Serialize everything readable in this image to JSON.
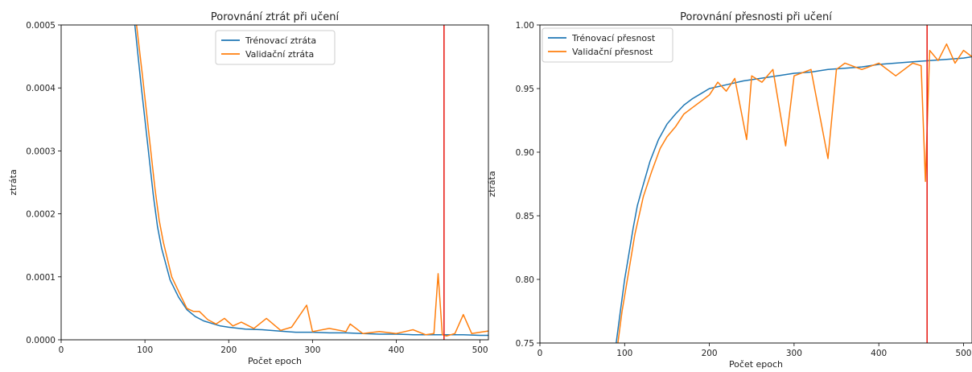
{
  "colors": {
    "train": "#1f77b4",
    "val": "#ff7f0e",
    "marker": "#e8231c"
  },
  "chart_data": [
    {
      "type": "line",
      "title": "Porovnání ztrát při učení",
      "xlabel": "Počet epoch",
      "ylabel": "ztráta",
      "xlim": [
        0,
        510
      ],
      "ylim": [
        0,
        0.0005
      ],
      "xticks": [
        0,
        100,
        200,
        300,
        400,
        500
      ],
      "yticks": [
        0,
        0.0001,
        0.0002,
        0.0003,
        0.0004,
        0.0005
      ],
      "ytick_labels": [
        "0.0000",
        "0.0001",
        "0.0002",
        "0.0003",
        "0.0004",
        "0.0005"
      ],
      "legend": "upper-center",
      "vline_x": 457,
      "grid": false,
      "series": [
        {
          "name": "Trénovací ztráta",
          "x": [
            88,
            95,
            100,
            105,
            110,
            115,
            120,
            130,
            140,
            150,
            160,
            170,
            180,
            190,
            200,
            220,
            240,
            260,
            280,
            300,
            320,
            340,
            360,
            380,
            400,
            420,
            440,
            460,
            480,
            500,
            510
          ],
          "y": [
            0.0005,
            0.00041,
            0.00035,
            0.00029,
            0.00023,
            0.00018,
            0.000145,
            9.5e-05,
            6.8e-05,
            4.8e-05,
            3.7e-05,
            3e-05,
            2.6e-05,
            2.2e-05,
            2e-05,
            1.7e-05,
            1.6e-05,
            1.4e-05,
            1.2e-05,
            1.2e-05,
            1.1e-05,
            1.1e-05,
            1e-05,
            9e-06,
            9e-06,
            8e-06,
            8e-06,
            8e-06,
            8e-06,
            7e-06,
            7e-06
          ]
        },
        {
          "name": "Validační ztráta",
          "x": [
            90,
            97,
            102,
            107,
            112,
            117,
            122,
            132,
            142,
            150,
            158,
            165,
            175,
            185,
            195,
            205,
            215,
            230,
            245,
            262,
            275,
            293,
            300,
            320,
            340,
            345,
            360,
            380,
            400,
            420,
            435,
            445,
            450,
            455,
            460,
            470,
            480,
            490,
            500,
            510
          ],
          "y": [
            0.0005,
            0.00042,
            0.00036,
            0.0003,
            0.00024,
            0.00019,
            0.000155,
            0.0001,
            7.2e-05,
            5e-05,
            4.5e-05,
            4.5e-05,
            3.2e-05,
            2.5e-05,
            3.4e-05,
            2.2e-05,
            2.8e-05,
            1.8e-05,
            3.4e-05,
            1.5e-05,
            2e-05,
            5.5e-05,
            1.3e-05,
            1.8e-05,
            1.3e-05,
            2.5e-05,
            1e-05,
            1.3e-05,
            1e-05,
            1.6e-05,
            8e-06,
            1e-05,
            0.000105,
            8e-06,
            6e-06,
            1e-05,
            4e-05,
            1e-05,
            1.2e-05,
            1.4e-05
          ]
        }
      ]
    },
    {
      "type": "line",
      "title": "Porovnání přesnosti při učení",
      "xlabel": "Počet epoch",
      "ylabel": "ztráta",
      "xlim": [
        0,
        510
      ],
      "ylim": [
        0.75,
        1.0
      ],
      "xticks": [
        0,
        100,
        200,
        300,
        400,
        500
      ],
      "yticks": [
        0.75,
        0.8,
        0.85,
        0.9,
        0.95,
        1.0
      ],
      "ytick_labels": [
        "0.75",
        "0.80",
        "0.85",
        "0.90",
        "0.95",
        "1.00"
      ],
      "legend": "upper-left",
      "vline_x": 457,
      "grid": false,
      "series": [
        {
          "name": "Trénovací přesnost",
          "x": [
            90,
            95,
            100,
            105,
            110,
            115,
            120,
            130,
            140,
            150,
            160,
            170,
            180,
            190,
            200,
            220,
            240,
            260,
            280,
            300,
            320,
            340,
            360,
            380,
            400,
            420,
            440,
            460,
            480,
            500,
            510
          ],
          "y": [
            0.75,
            0.775,
            0.8,
            0.82,
            0.84,
            0.858,
            0.87,
            0.893,
            0.91,
            0.922,
            0.93,
            0.937,
            0.942,
            0.946,
            0.95,
            0.953,
            0.956,
            0.958,
            0.96,
            0.962,
            0.963,
            0.965,
            0.966,
            0.967,
            0.969,
            0.97,
            0.971,
            0.972,
            0.973,
            0.974,
            0.975
          ]
        },
        {
          "name": "Validační přesnost",
          "x": [
            92,
            97,
            102,
            107,
            112,
            117,
            122,
            132,
            142,
            150,
            160,
            170,
            180,
            190,
            200,
            210,
            220,
            230,
            244,
            250,
            262,
            275,
            290,
            300,
            320,
            340,
            350,
            360,
            380,
            400,
            420,
            440,
            450,
            455,
            460,
            470,
            480,
            490,
            500,
            510
          ],
          "y": [
            0.75,
            0.775,
            0.795,
            0.815,
            0.835,
            0.85,
            0.865,
            0.885,
            0.903,
            0.912,
            0.92,
            0.93,
            0.935,
            0.94,
            0.945,
            0.955,
            0.948,
            0.958,
            0.91,
            0.96,
            0.955,
            0.965,
            0.905,
            0.96,
            0.965,
            0.895,
            0.965,
            0.97,
            0.965,
            0.97,
            0.96,
            0.97,
            0.968,
            0.877,
            0.98,
            0.972,
            0.985,
            0.97,
            0.98,
            0.975
          ]
        }
      ]
    }
  ]
}
